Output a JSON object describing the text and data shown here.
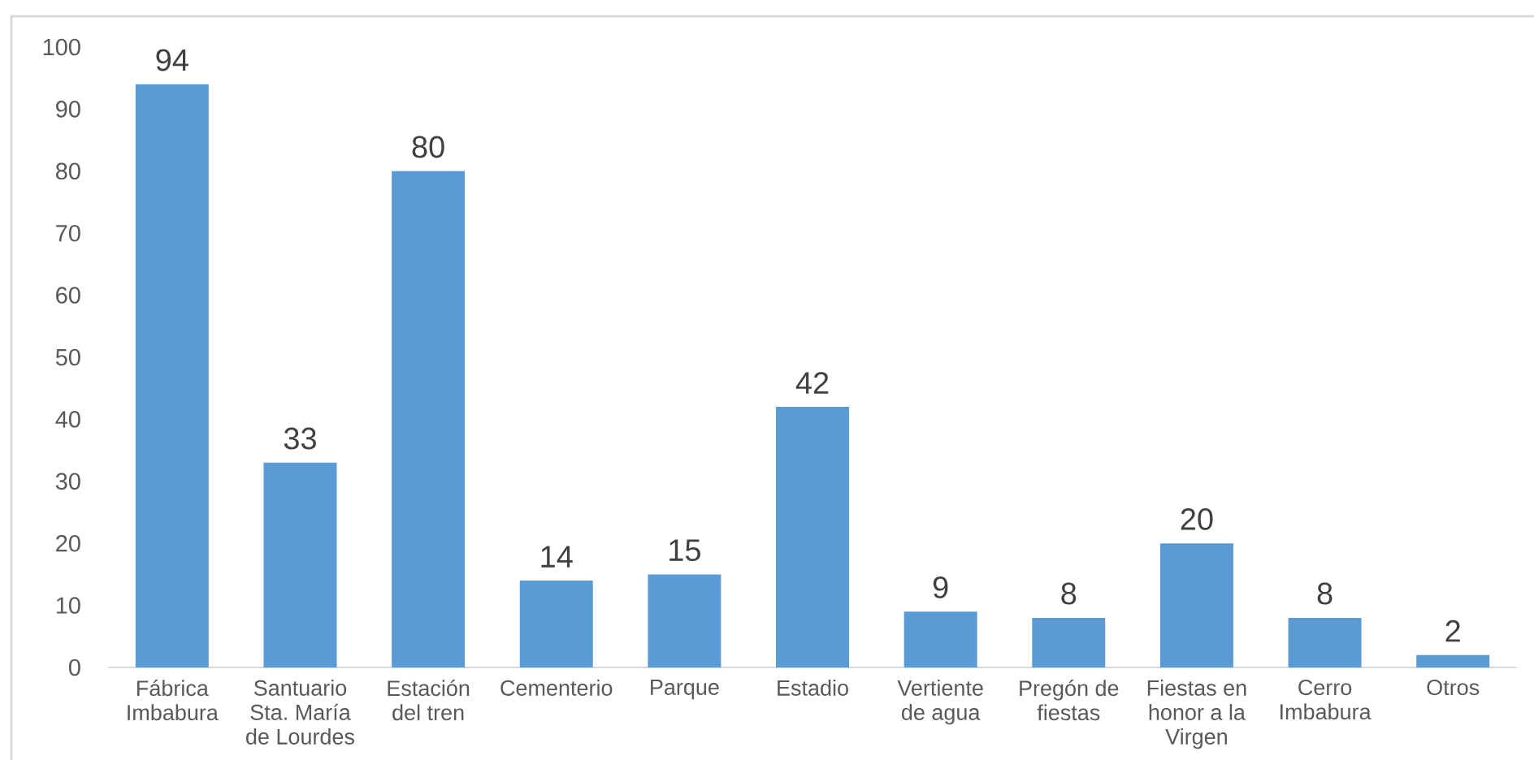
{
  "chart_data": {
    "type": "bar",
    "categories": [
      "Fábrica Imbabura",
      "Santuario Sta. María de Lourdes",
      "Estación del tren",
      "Cementerio",
      "Parque",
      "Estadio",
      "Vertiente de agua",
      "Pregón de fiestas",
      "Fiestas en honor a la Virgen",
      "Cerro Imbabura",
      "Otros"
    ],
    "values": [
      94,
      33,
      80,
      14,
      15,
      42,
      9,
      8,
      20,
      8,
      2
    ],
    "color": "#5b9bd5",
    "ylim": [
      0,
      100
    ],
    "yticks": [
      0,
      10,
      20,
      30,
      40,
      50,
      60,
      70,
      80,
      90,
      100
    ],
    "data_labels": true
  }
}
